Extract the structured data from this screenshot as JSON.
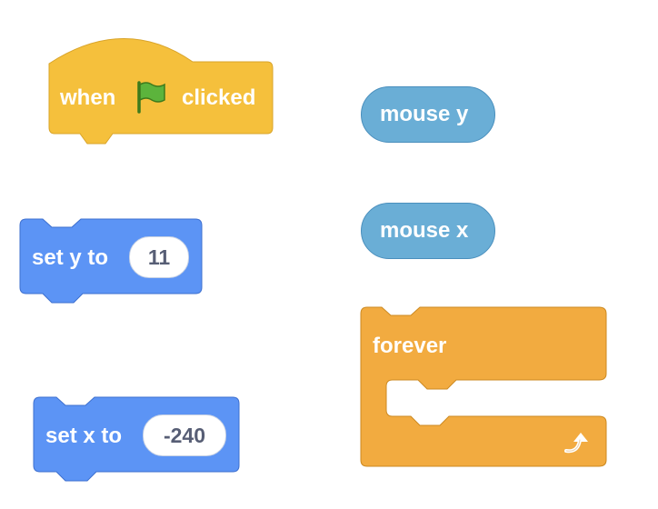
{
  "blocks": {
    "when_flag": {
      "when": "when",
      "clicked": "clicked",
      "flag_icon": "green-flag-icon"
    },
    "set_y": {
      "label": "set y to",
      "value": "11"
    },
    "set_x": {
      "label": "set x to",
      "value": "-240"
    },
    "mouse_y": {
      "label": "mouse y"
    },
    "mouse_x": {
      "label": "mouse x"
    },
    "forever": {
      "label": "forever",
      "loop_icon": "loop-arrow-icon"
    }
  },
  "colors": {
    "events": "#f5c03c",
    "motion": "#5c94f5",
    "sensing": "#6aaed6",
    "control": "#f2ab40",
    "slot_text": "#575e75"
  }
}
